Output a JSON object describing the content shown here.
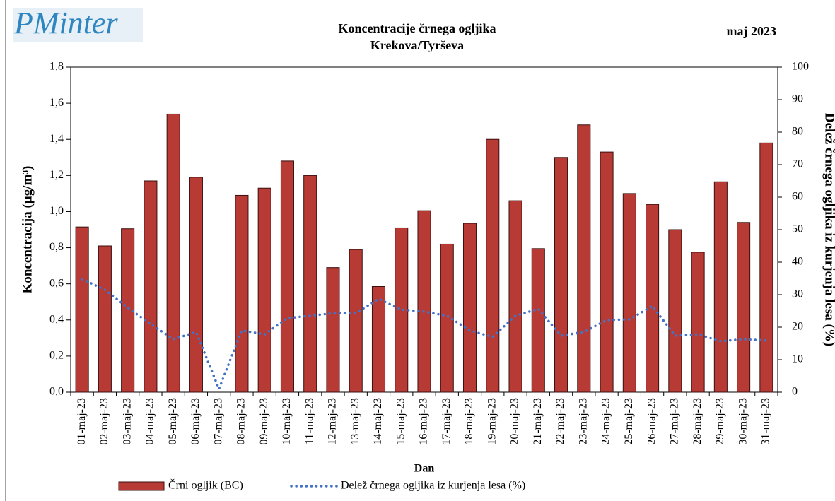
{
  "logo": "PMinter",
  "chart_data": {
    "type": "bar",
    "title": "Koncentracije črnega ogljika",
    "subtitle": "Krekova/Tyrševa",
    "period": "maj 2023",
    "x_label": "Dan",
    "y_label": "Koncentracija  (µg/m³)",
    "y2_label": "Delež črnega ogljika iz kurjenja lesa (%)",
    "categories": [
      "01-maj-23",
      "02-maj-23",
      "03-maj-23",
      "04-maj-23",
      "05-maj-23",
      "06-maj-23",
      "07-maj-23",
      "08-maj-23",
      "09-maj-23",
      "10-maj-23",
      "11-maj-23",
      "12-maj-23",
      "13-maj-23",
      "14-maj-23",
      "15-maj-23",
      "16-maj-23",
      "17-maj-23",
      "18-maj-23",
      "19-maj-23",
      "20-maj-23",
      "21-maj-23",
      "22-maj-23",
      "23-maj-23",
      "24-maj-23",
      "25-maj-23",
      "26-maj-23",
      "27-maj-23",
      "28-maj-23",
      "29-maj-23",
      "30-maj-23",
      "31-maj-23"
    ],
    "series": [
      {
        "name": "Črni ogljik (BC)",
        "type": "bar",
        "color": "#b83a35",
        "values": [
          0.915,
          0.81,
          0.905,
          1.17,
          1.54,
          1.19,
          null,
          1.09,
          1.13,
          1.28,
          1.2,
          0.69,
          0.79,
          0.585,
          0.91,
          1.005,
          0.82,
          0.935,
          1.4,
          1.06,
          0.795,
          1.3,
          1.48,
          1.33,
          1.1,
          1.04,
          0.9,
          0.775,
          1.165,
          0.94,
          1.38
        ]
      },
      {
        "name": "Delež črnega ogljika iz kurjenja lesa (%)",
        "type": "line",
        "axis": "y2",
        "color": "#4472c4",
        "values": [
          34.8,
          31.5,
          26,
          21,
          16.3,
          18.5,
          1,
          19,
          17.8,
          22.8,
          23.5,
          24.3,
          24.3,
          28.7,
          25.4,
          24.8,
          23.5,
          19,
          17,
          23.5,
          25.6,
          17.4,
          18.5,
          22.2,
          22.4,
          26.5,
          17.4,
          17.8,
          15.7,
          16.3,
          15.9
        ]
      }
    ],
    "ylim": [
      0,
      1.8
    ],
    "yticks": [
      {
        "value": 0,
        "label": "0,0"
      },
      {
        "value": 0.2,
        "label": "0,2"
      },
      {
        "value": 0.4,
        "label": "0,4"
      },
      {
        "value": 0.6,
        "label": "0,6"
      },
      {
        "value": 0.8,
        "label": "0,8"
      },
      {
        "value": 1,
        "label": "1,0"
      },
      {
        "value": 1.2,
        "label": "1,2"
      },
      {
        "value": 1.4,
        "label": "1,4"
      },
      {
        "value": 1.6,
        "label": "1,6"
      },
      {
        "value": 1.8,
        "label": "1,8"
      }
    ],
    "y2lim": [
      0,
      100
    ],
    "y2ticks": [
      0,
      10,
      20,
      30,
      40,
      50,
      60,
      70,
      80,
      90,
      100
    ],
    "legend": "bottom"
  }
}
